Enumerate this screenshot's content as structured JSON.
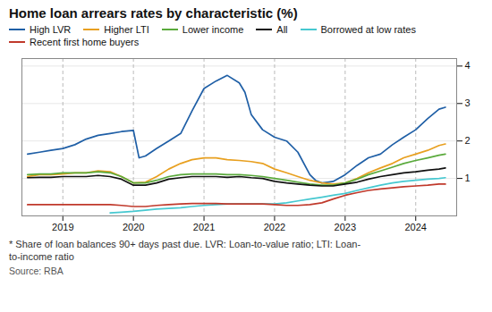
{
  "chart_data": {
    "type": "line",
    "title": "Home loan arrears rates by characteristic (%)",
    "annotations": [
      "* Share of loan balances 90+ days past due. LVR: Loan-to-value ratio; LTI: Loan-\nto-income ratio",
      "Source: RBA"
    ],
    "xlim": [
      2018.42,
      2024.58
    ],
    "xticks": [
      2019,
      2020,
      2021,
      2022,
      2023,
      2024
    ],
    "ylim": [
      0,
      4.2
    ],
    "yticks": [
      1,
      2,
      3,
      4
    ],
    "grid": true,
    "legend": "top",
    "series": [
      {
        "name": "High LVR",
        "color": "#1f5fa6",
        "x": [
          2018.5,
          2018.67,
          2018.83,
          2019.0,
          2019.17,
          2019.33,
          2019.5,
          2019.67,
          2019.83,
          2020.0,
          2020.08,
          2020.17,
          2020.33,
          2020.5,
          2020.67,
          2020.83,
          2021.0,
          2021.17,
          2021.33,
          2021.5,
          2021.58,
          2021.67,
          2021.83,
          2022.0,
          2022.17,
          2022.33,
          2022.5,
          2022.58,
          2022.67,
          2022.75,
          2022.83,
          2023.0,
          2023.17,
          2023.33,
          2023.5,
          2023.67,
          2023.83,
          2024.0,
          2024.17,
          2024.33,
          2024.42
        ],
        "values": [
          1.65,
          1.7,
          1.75,
          1.8,
          1.9,
          2.05,
          2.15,
          2.2,
          2.25,
          2.28,
          1.55,
          1.6,
          1.8,
          2.0,
          2.2,
          2.8,
          3.4,
          3.6,
          3.75,
          3.55,
          3.3,
          2.7,
          2.3,
          2.1,
          2.0,
          1.7,
          1.1,
          0.95,
          0.88,
          0.9,
          0.92,
          1.1,
          1.35,
          1.55,
          1.65,
          1.9,
          2.1,
          2.3,
          2.6,
          2.85,
          2.9
        ]
      },
      {
        "name": "Higher LTI",
        "color": "#e8a020",
        "x": [
          2018.5,
          2018.67,
          2018.83,
          2019.0,
          2019.17,
          2019.33,
          2019.5,
          2019.67,
          2019.83,
          2020.0,
          2020.17,
          2020.33,
          2020.5,
          2020.67,
          2020.83,
          2021.0,
          2021.17,
          2021.33,
          2021.5,
          2021.67,
          2021.83,
          2022.0,
          2022.17,
          2022.33,
          2022.5,
          2022.67,
          2022.83,
          2023.0,
          2023.17,
          2023.33,
          2023.5,
          2023.67,
          2023.83,
          2024.0,
          2024.17,
          2024.33,
          2024.42
        ],
        "values": [
          1.05,
          1.1,
          1.1,
          1.12,
          1.15,
          1.15,
          1.2,
          1.18,
          1.05,
          0.88,
          0.9,
          1.05,
          1.25,
          1.4,
          1.5,
          1.55,
          1.55,
          1.5,
          1.48,
          1.45,
          1.4,
          1.25,
          1.15,
          1.05,
          0.95,
          0.88,
          0.85,
          0.88,
          1.0,
          1.15,
          1.28,
          1.4,
          1.55,
          1.65,
          1.75,
          1.88,
          1.92
        ]
      },
      {
        "name": "Lower income",
        "color": "#5aaa3c",
        "x": [
          2018.5,
          2018.67,
          2018.83,
          2019.0,
          2019.17,
          2019.33,
          2019.5,
          2019.67,
          2019.83,
          2020.0,
          2020.17,
          2020.33,
          2020.5,
          2020.67,
          2020.83,
          2021.0,
          2021.17,
          2021.33,
          2021.5,
          2021.67,
          2021.83,
          2022.0,
          2022.17,
          2022.33,
          2022.5,
          2022.67,
          2022.83,
          2023.0,
          2023.17,
          2023.33,
          2023.5,
          2023.67,
          2023.83,
          2024.0,
          2024.17,
          2024.33,
          2024.42
        ],
        "values": [
          1.1,
          1.12,
          1.12,
          1.15,
          1.15,
          1.15,
          1.18,
          1.15,
          1.05,
          0.88,
          0.88,
          0.95,
          1.05,
          1.1,
          1.12,
          1.12,
          1.12,
          1.1,
          1.1,
          1.08,
          1.05,
          1.0,
          0.95,
          0.9,
          0.85,
          0.82,
          0.82,
          0.88,
          0.98,
          1.1,
          1.2,
          1.3,
          1.4,
          1.48,
          1.55,
          1.62,
          1.65
        ]
      },
      {
        "name": "All",
        "color": "#111111",
        "x": [
          2018.5,
          2018.67,
          2018.83,
          2019.0,
          2019.17,
          2019.33,
          2019.5,
          2019.67,
          2019.83,
          2020.0,
          2020.17,
          2020.33,
          2020.5,
          2020.67,
          2020.83,
          2021.0,
          2021.17,
          2021.33,
          2021.5,
          2021.67,
          2021.83,
          2022.0,
          2022.17,
          2022.33,
          2022.5,
          2022.67,
          2022.83,
          2023.0,
          2023.17,
          2023.33,
          2023.5,
          2023.67,
          2023.83,
          2024.0,
          2024.17,
          2024.33,
          2024.42
        ],
        "values": [
          1.02,
          1.03,
          1.03,
          1.05,
          1.05,
          1.05,
          1.08,
          1.05,
          0.98,
          0.82,
          0.82,
          0.88,
          0.98,
          1.02,
          1.05,
          1.05,
          1.05,
          1.03,
          1.05,
          1.02,
          1.0,
          0.92,
          0.88,
          0.85,
          0.82,
          0.8,
          0.8,
          0.85,
          0.9,
          0.98,
          1.05,
          1.1,
          1.15,
          1.18,
          1.22,
          1.25,
          1.28
        ]
      },
      {
        "name": "Borrowed at low rates",
        "color": "#46c8d0",
        "x": [
          2019.67,
          2019.83,
          2020.0,
          2020.17,
          2020.33,
          2020.5,
          2020.67,
          2020.83,
          2021.0,
          2021.17,
          2021.33,
          2021.5,
          2021.67,
          2021.83,
          2022.0,
          2022.17,
          2022.33,
          2022.5,
          2022.67,
          2022.83,
          2023.0,
          2023.17,
          2023.33,
          2023.5,
          2023.67,
          2023.83,
          2024.0,
          2024.17,
          2024.33,
          2024.42
        ],
        "values": [
          0.08,
          0.1,
          0.12,
          0.15,
          0.18,
          0.2,
          0.22,
          0.25,
          0.28,
          0.3,
          0.32,
          0.32,
          0.32,
          0.32,
          0.32,
          0.35,
          0.4,
          0.45,
          0.5,
          0.55,
          0.6,
          0.68,
          0.75,
          0.82,
          0.88,
          0.92,
          0.95,
          0.98,
          1.0,
          1.02
        ]
      },
      {
        "name": "Recent first home buyers",
        "color": "#c0392b",
        "x": [
          2018.5,
          2018.67,
          2018.83,
          2019.0,
          2019.17,
          2019.33,
          2019.5,
          2019.67,
          2019.83,
          2020.0,
          2020.17,
          2020.33,
          2020.5,
          2020.67,
          2020.83,
          2021.0,
          2021.17,
          2021.33,
          2021.5,
          2021.67,
          2021.83,
          2022.0,
          2022.17,
          2022.33,
          2022.5,
          2022.67,
          2022.83,
          2023.0,
          2023.17,
          2023.33,
          2023.5,
          2023.67,
          2023.83,
          2024.0,
          2024.17,
          2024.33,
          2024.42
        ],
        "values": [
          0.3,
          0.3,
          0.3,
          0.3,
          0.3,
          0.3,
          0.3,
          0.3,
          0.28,
          0.25,
          0.25,
          0.28,
          0.3,
          0.32,
          0.33,
          0.33,
          0.33,
          0.32,
          0.32,
          0.32,
          0.32,
          0.3,
          0.28,
          0.28,
          0.3,
          0.35,
          0.45,
          0.55,
          0.62,
          0.68,
          0.72,
          0.75,
          0.78,
          0.8,
          0.82,
          0.85,
          0.85
        ]
      }
    ]
  }
}
